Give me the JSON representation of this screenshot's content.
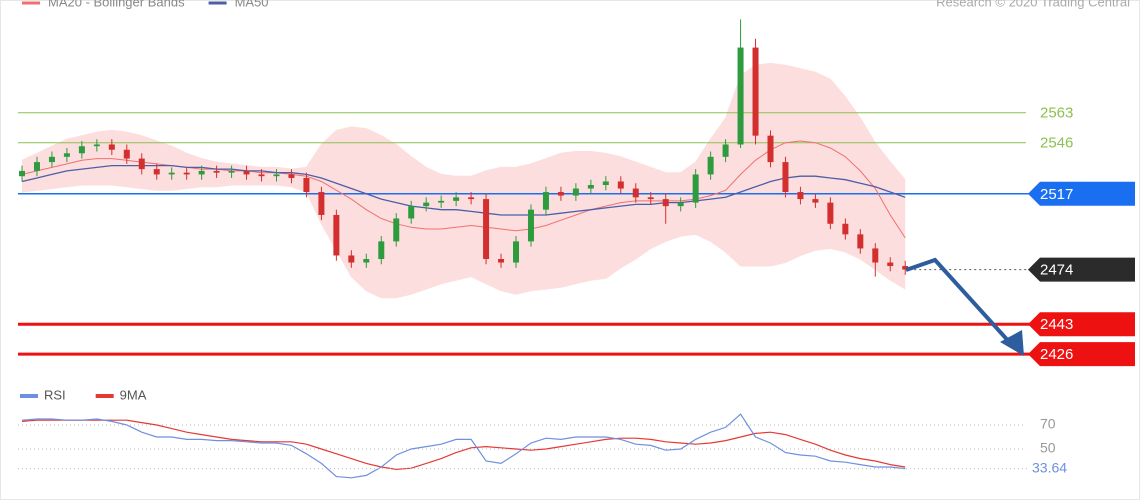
{
  "chart_data": [
    {
      "type": "candlestick",
      "source": "Research © 2020 Trading Central",
      "ylim": [
        2417,
        2627
      ],
      "up_color": "#2e9b3f",
      "down_color": "#d32f2f",
      "candles": {
        "open": [
          2527,
          2530,
          2535,
          2538,
          2540,
          2544,
          2545,
          2542,
          2537,
          2531,
          2528,
          2529,
          2528,
          2530,
          2529,
          2530,
          2528,
          2527,
          2528,
          2526,
          2518,
          2505,
          2482,
          2478,
          2480,
          2490,
          2503,
          2510,
          2512,
          2513,
          2515,
          2514,
          2480,
          2478,
          2490,
          2508,
          2518,
          2516,
          2520,
          2522,
          2524,
          2520,
          2515,
          2514,
          2510,
          2512,
          2528,
          2538,
          2545,
          2600,
          2550,
          2535,
          2518,
          2514,
          2512,
          2500,
          2494,
          2486,
          2478,
          2476
        ],
        "high": [
          2533,
          2538,
          2541,
          2543,
          2547,
          2548,
          2548,
          2545,
          2540,
          2534,
          2532,
          2532,
          2533,
          2533,
          2533,
          2533,
          2531,
          2531,
          2531,
          2529,
          2521,
          2508,
          2485,
          2483,
          2493,
          2506,
          2513,
          2515,
          2516,
          2518,
          2518,
          2517,
          2483,
          2493,
          2511,
          2521,
          2521,
          2523,
          2525,
          2527,
          2527,
          2523,
          2518,
          2517,
          2515,
          2531,
          2541,
          2548,
          2616,
          2605,
          2553,
          2538,
          2521,
          2517,
          2515,
          2503,
          2497,
          2489,
          2481,
          2479
        ],
        "low": [
          2524,
          2527,
          2532,
          2535,
          2537,
          2541,
          2539,
          2534,
          2528,
          2525,
          2525,
          2525,
          2525,
          2526,
          2526,
          2525,
          2524,
          2524,
          2523,
          2515,
          2502,
          2479,
          2475,
          2475,
          2477,
          2487,
          2500,
          2507,
          2509,
          2510,
          2511,
          2477,
          2475,
          2475,
          2487,
          2505,
          2513,
          2513,
          2517,
          2519,
          2517,
          2512,
          2511,
          2500,
          2507,
          2509,
          2525,
          2535,
          2543,
          2545,
          2532,
          2515,
          2511,
          2509,
          2497,
          2491,
          2483,
          2470,
          2473,
          2471
        ],
        "close": [
          2530,
          2535,
          2538,
          2540,
          2544,
          2545,
          2542,
          2537,
          2531,
          2528,
          2529,
          2528,
          2530,
          2529,
          2530,
          2528,
          2527,
          2528,
          2526,
          2518,
          2505,
          2482,
          2478,
          2480,
          2490,
          2503,
          2510,
          2512,
          2513,
          2515,
          2514,
          2480,
          2478,
          2490,
          2508,
          2518,
          2516,
          2520,
          2522,
          2524,
          2520,
          2515,
          2514,
          2510,
          2512,
          2528,
          2538,
          2545,
          2600,
          2550,
          2535,
          2518,
          2514,
          2512,
          2500,
          2494,
          2486,
          2478,
          2476,
          2474
        ]
      },
      "overlays": [
        {
          "name": "MA20 - Bollinger Bands",
          "color": "#f07070",
          "band_color": "#fcdede",
          "values": [
            2528,
            2530,
            2532,
            2534,
            2536,
            2537,
            2537,
            2536,
            2535,
            2534,
            2533,
            2532,
            2531,
            2531,
            2530,
            2530,
            2529,
            2529,
            2528,
            2527,
            2524,
            2519,
            2514,
            2508,
            2503,
            2500,
            2498,
            2497,
            2497,
            2498,
            2499,
            2498,
            2497,
            2496,
            2497,
            2499,
            2502,
            2505,
            2508,
            2510,
            2512,
            2513,
            2513,
            2513,
            2513,
            2514,
            2516,
            2519,
            2528,
            2536,
            2542,
            2546,
            2547,
            2546,
            2543,
            2538,
            2530,
            2520,
            2505,
            2492
          ],
          "upper": [
            2536,
            2540,
            2544,
            2548,
            2550,
            2552,
            2553,
            2552,
            2550,
            2547,
            2544,
            2540,
            2537,
            2535,
            2534,
            2533,
            2532,
            2532,
            2531,
            2532,
            2545,
            2553,
            2555,
            2554,
            2550,
            2545,
            2538,
            2532,
            2528,
            2527,
            2527,
            2530,
            2532,
            2532,
            2534,
            2537,
            2540,
            2541,
            2541,
            2540,
            2538,
            2535,
            2532,
            2529,
            2529,
            2535,
            2548,
            2560,
            2584,
            2590,
            2591,
            2590,
            2588,
            2586,
            2582,
            2572,
            2560,
            2546,
            2535,
            2525
          ],
          "lower": [
            2518,
            2519,
            2520,
            2521,
            2522,
            2522,
            2522,
            2521,
            2520,
            2519,
            2519,
            2520,
            2521,
            2521,
            2522,
            2522,
            2522,
            2522,
            2521,
            2518,
            2500,
            2485,
            2470,
            2462,
            2458,
            2458,
            2460,
            2463,
            2466,
            2468,
            2470,
            2466,
            2462,
            2460,
            2462,
            2463,
            2464,
            2466,
            2468,
            2469,
            2475,
            2480,
            2486,
            2490,
            2493,
            2494,
            2490,
            2484,
            2476,
            2476,
            2476,
            2478,
            2482,
            2485,
            2486,
            2484,
            2480,
            2474,
            2468,
            2463
          ]
        },
        {
          "name": "MA50",
          "color": "#4a5fa8",
          "values": [
            2524,
            2526,
            2528,
            2530,
            2531,
            2532,
            2533,
            2533,
            2533,
            2533,
            2533,
            2532,
            2532,
            2531,
            2531,
            2530,
            2530,
            2529,
            2529,
            2528,
            2526,
            2523,
            2520,
            2517,
            2514,
            2512,
            2510,
            2509,
            2508,
            2508,
            2507,
            2506,
            2505,
            2505,
            2505,
            2505,
            2506,
            2507,
            2508,
            2509,
            2510,
            2511,
            2511,
            2512,
            2512,
            2513,
            2514,
            2515,
            2518,
            2521,
            2524,
            2526,
            2527,
            2527,
            2526,
            2525,
            2523,
            2521,
            2518,
            2515
          ]
        }
      ],
      "last_color": "#2b2b2b",
      "levels": [
        {
          "value": 2563,
          "color": "#8cc152",
          "tag": false
        },
        {
          "value": 2546,
          "color": "#8cc152",
          "tag": false
        },
        {
          "value": 2517,
          "color": "#1a6ff0",
          "tag": true
        },
        {
          "value": 2443,
          "color": "#ee1111",
          "tag": true
        },
        {
          "value": 2426,
          "color": "#ee1111",
          "tag": true
        }
      ]
    },
    {
      "type": "line",
      "ylim": [
        15,
        85
      ],
      "yticks": [
        70,
        50
      ],
      "series": [
        {
          "name": "RSI",
          "color": "#6f8fe0",
          "values": [
            74,
            75,
            75,
            74,
            74,
            75,
            73,
            70,
            64,
            60,
            60,
            58,
            58,
            57,
            57,
            56,
            55,
            55,
            53,
            46,
            38,
            27,
            26,
            28,
            35,
            45,
            50,
            52,
            54,
            58,
            58,
            40,
            38,
            46,
            55,
            59,
            58,
            60,
            60,
            60,
            58,
            54,
            53,
            49,
            50,
            58,
            64,
            68,
            79,
            60,
            55,
            47,
            45,
            44,
            40,
            39,
            37,
            35,
            35,
            33.64
          ]
        },
        {
          "name": "9MA",
          "color": "#e53935",
          "values": [
            73,
            74,
            74,
            74,
            74,
            74,
            74,
            74,
            72,
            70,
            67,
            64,
            62,
            60,
            58,
            57,
            56,
            56,
            56,
            54,
            50,
            46,
            42,
            38,
            35,
            33,
            34,
            38,
            42,
            47,
            51,
            52,
            51,
            50,
            49,
            50,
            52,
            54,
            56,
            58,
            59,
            59,
            58,
            56,
            55,
            54,
            55,
            57,
            60,
            63,
            64,
            62,
            58,
            54,
            49,
            45,
            42,
            40,
            37,
            35
          ]
        }
      ]
    }
  ]
}
